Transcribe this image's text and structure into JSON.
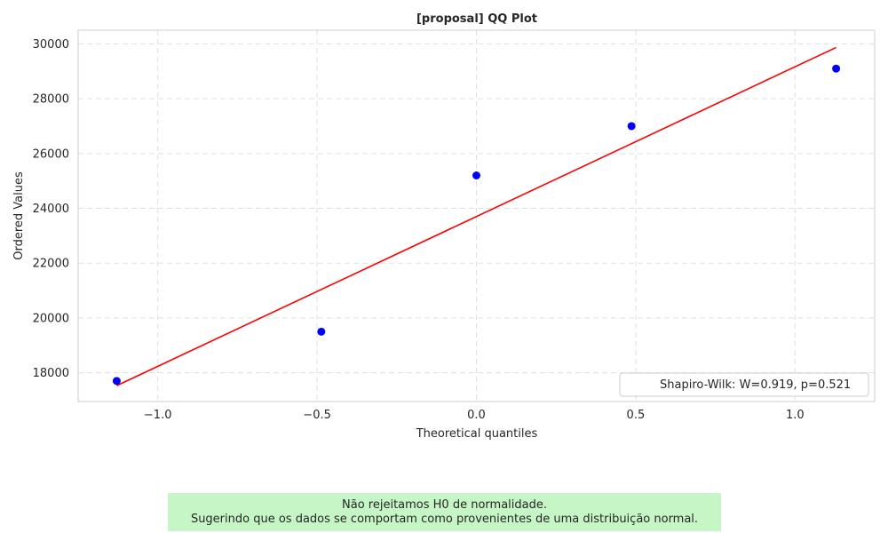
{
  "chart_data": {
    "type": "scatter",
    "title": "[proposal] QQ Plot",
    "xlabel": "Theoretical quantiles",
    "ylabel": "Ordered Values",
    "xlim": [
      -1.25,
      1.25
    ],
    "ylim": [
      16950,
      30500
    ],
    "x_ticks": [
      -1.0,
      -0.5,
      0.0,
      0.5,
      1.0
    ],
    "x_tick_labels": [
      "−1.0",
      "−0.5",
      "0.0",
      "0.5",
      "1.0"
    ],
    "y_ticks": [
      18000,
      20000,
      22000,
      24000,
      26000,
      28000,
      30000
    ],
    "y_tick_labels": [
      "18000",
      "20000",
      "22000",
      "24000",
      "26000",
      "28000",
      "30000"
    ],
    "grid": true,
    "legend_position": "lower-right",
    "series": [
      {
        "kind": "points",
        "color": "#0000ff",
        "x": [
          -1.129,
          -0.4868,
          0.0,
          0.4868,
          1.129
        ],
        "y": [
          17700,
          19500,
          25200,
          27000,
          29100
        ]
      },
      {
        "kind": "line",
        "name": "Shapiro-Wilk: W=0.919, p=0.521",
        "color": "#ff0000",
        "x": [
          -1.129,
          1.129
        ],
        "y": [
          17530,
          29870
        ]
      }
    ]
  },
  "conclusion": {
    "line1": "Não rejeitamos H0 de normalidade.",
    "line2": "Sugerindo que os dados se comportam como provenientes de uma distribuição normal.",
    "background": "#c6f6c6"
  }
}
